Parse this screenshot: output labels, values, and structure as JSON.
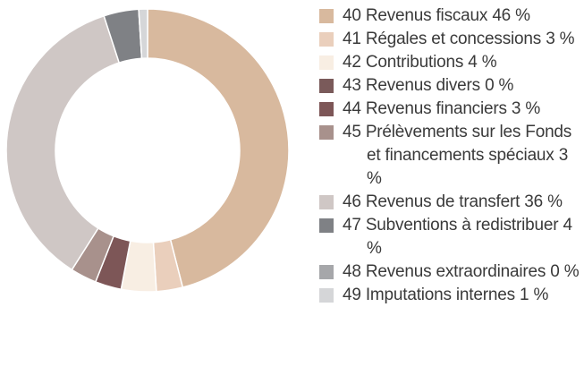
{
  "chart_data": {
    "type": "pie",
    "donut": true,
    "categories": [
      "40 Revenus fiscaux",
      "41 Régales et concessions",
      "42 Contributions",
      "43 Revenus divers",
      "44 Revenus financiers",
      "45 Prélèvements sur les Fonds et financements spéciaux",
      "46 Revenus de transfert",
      "47 Subventions à redistribuer",
      "48 Revenus extraordinaires",
      "49 Imputations internes"
    ],
    "values": [
      46,
      3,
      4,
      0,
      3,
      3,
      36,
      4,
      0,
      1
    ],
    "value_labels": [
      "46 %",
      "3 %",
      "4 %",
      "0 %",
      "3 %",
      "3 %",
      "36 %",
      "4 %",
      "0 %",
      "1 %"
    ],
    "colors": [
      "#d8b99e",
      "#eacfbc",
      "#f8eee3",
      "#7a5a5a",
      "#7d5657",
      "#a8918c",
      "#cfc7c5",
      "#7f8185",
      "#a6a7aa",
      "#d5d6d8"
    ],
    "legend": "right"
  }
}
